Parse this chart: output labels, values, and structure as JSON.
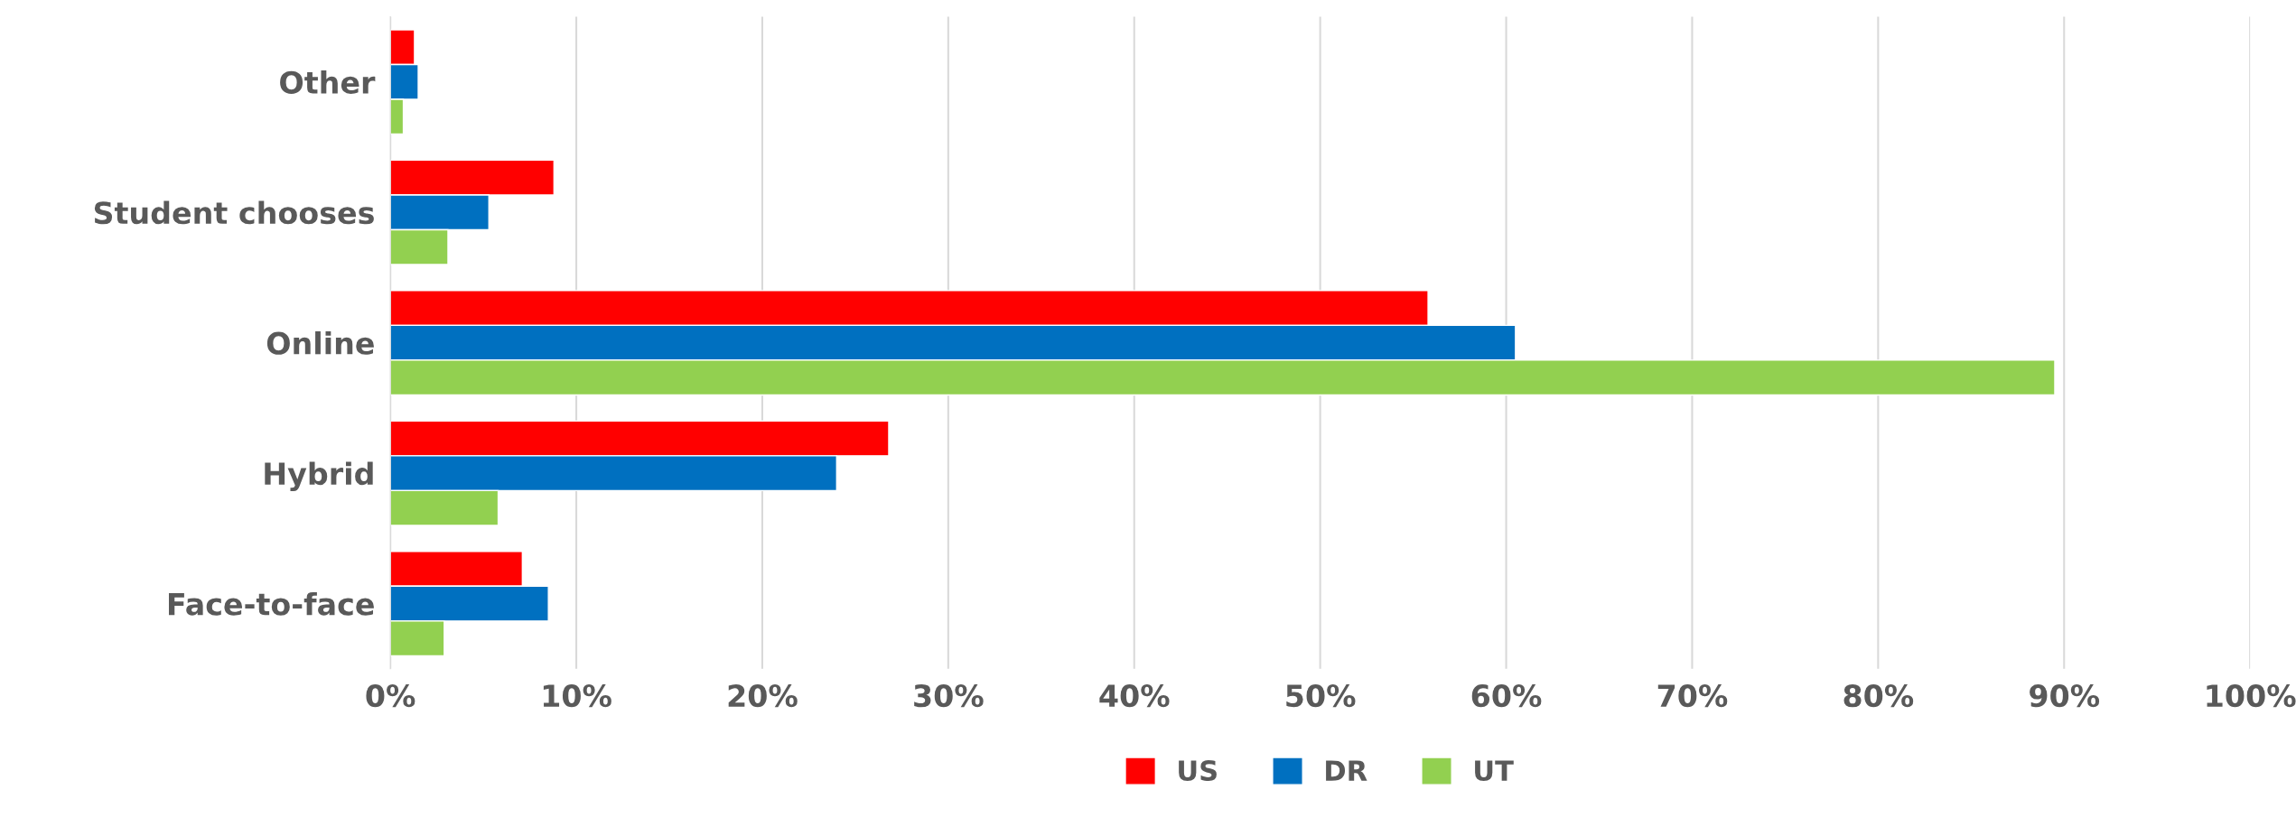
{
  "chart_data": {
    "type": "bar",
    "orientation": "horizontal",
    "categories": [
      "Other",
      "Student chooses",
      "Online",
      "Hybrid",
      "Face-to-face"
    ],
    "series": [
      {
        "name": "US",
        "color": "#ff0000",
        "values": [
          1.3,
          8.8,
          55.8,
          26.8,
          7.1
        ]
      },
      {
        "name": "DR",
        "color": "#0070c0",
        "values": [
          1.5,
          5.3,
          60.5,
          24.0,
          8.5
        ]
      },
      {
        "name": "UT",
        "color": "#92d050",
        "values": [
          0.7,
          3.1,
          89.5,
          5.8,
          2.9
        ]
      }
    ],
    "xlim": [
      0,
      100
    ],
    "xticks": [
      {
        "value": 0,
        "label": "0%"
      },
      {
        "value": 10,
        "label": "10%"
      },
      {
        "value": 20,
        "label": "20%"
      },
      {
        "value": 30,
        "label": "30%"
      },
      {
        "value": 40,
        "label": "40%"
      },
      {
        "value": 50,
        "label": "50%"
      },
      {
        "value": 60,
        "label": "60%"
      },
      {
        "value": 70,
        "label": "70%"
      },
      {
        "value": 80,
        "label": "80%"
      },
      {
        "value": 90,
        "label": "90%"
      },
      {
        "value": 100,
        "label": "100%"
      }
    ],
    "grid": "x",
    "legend": "bottom"
  }
}
